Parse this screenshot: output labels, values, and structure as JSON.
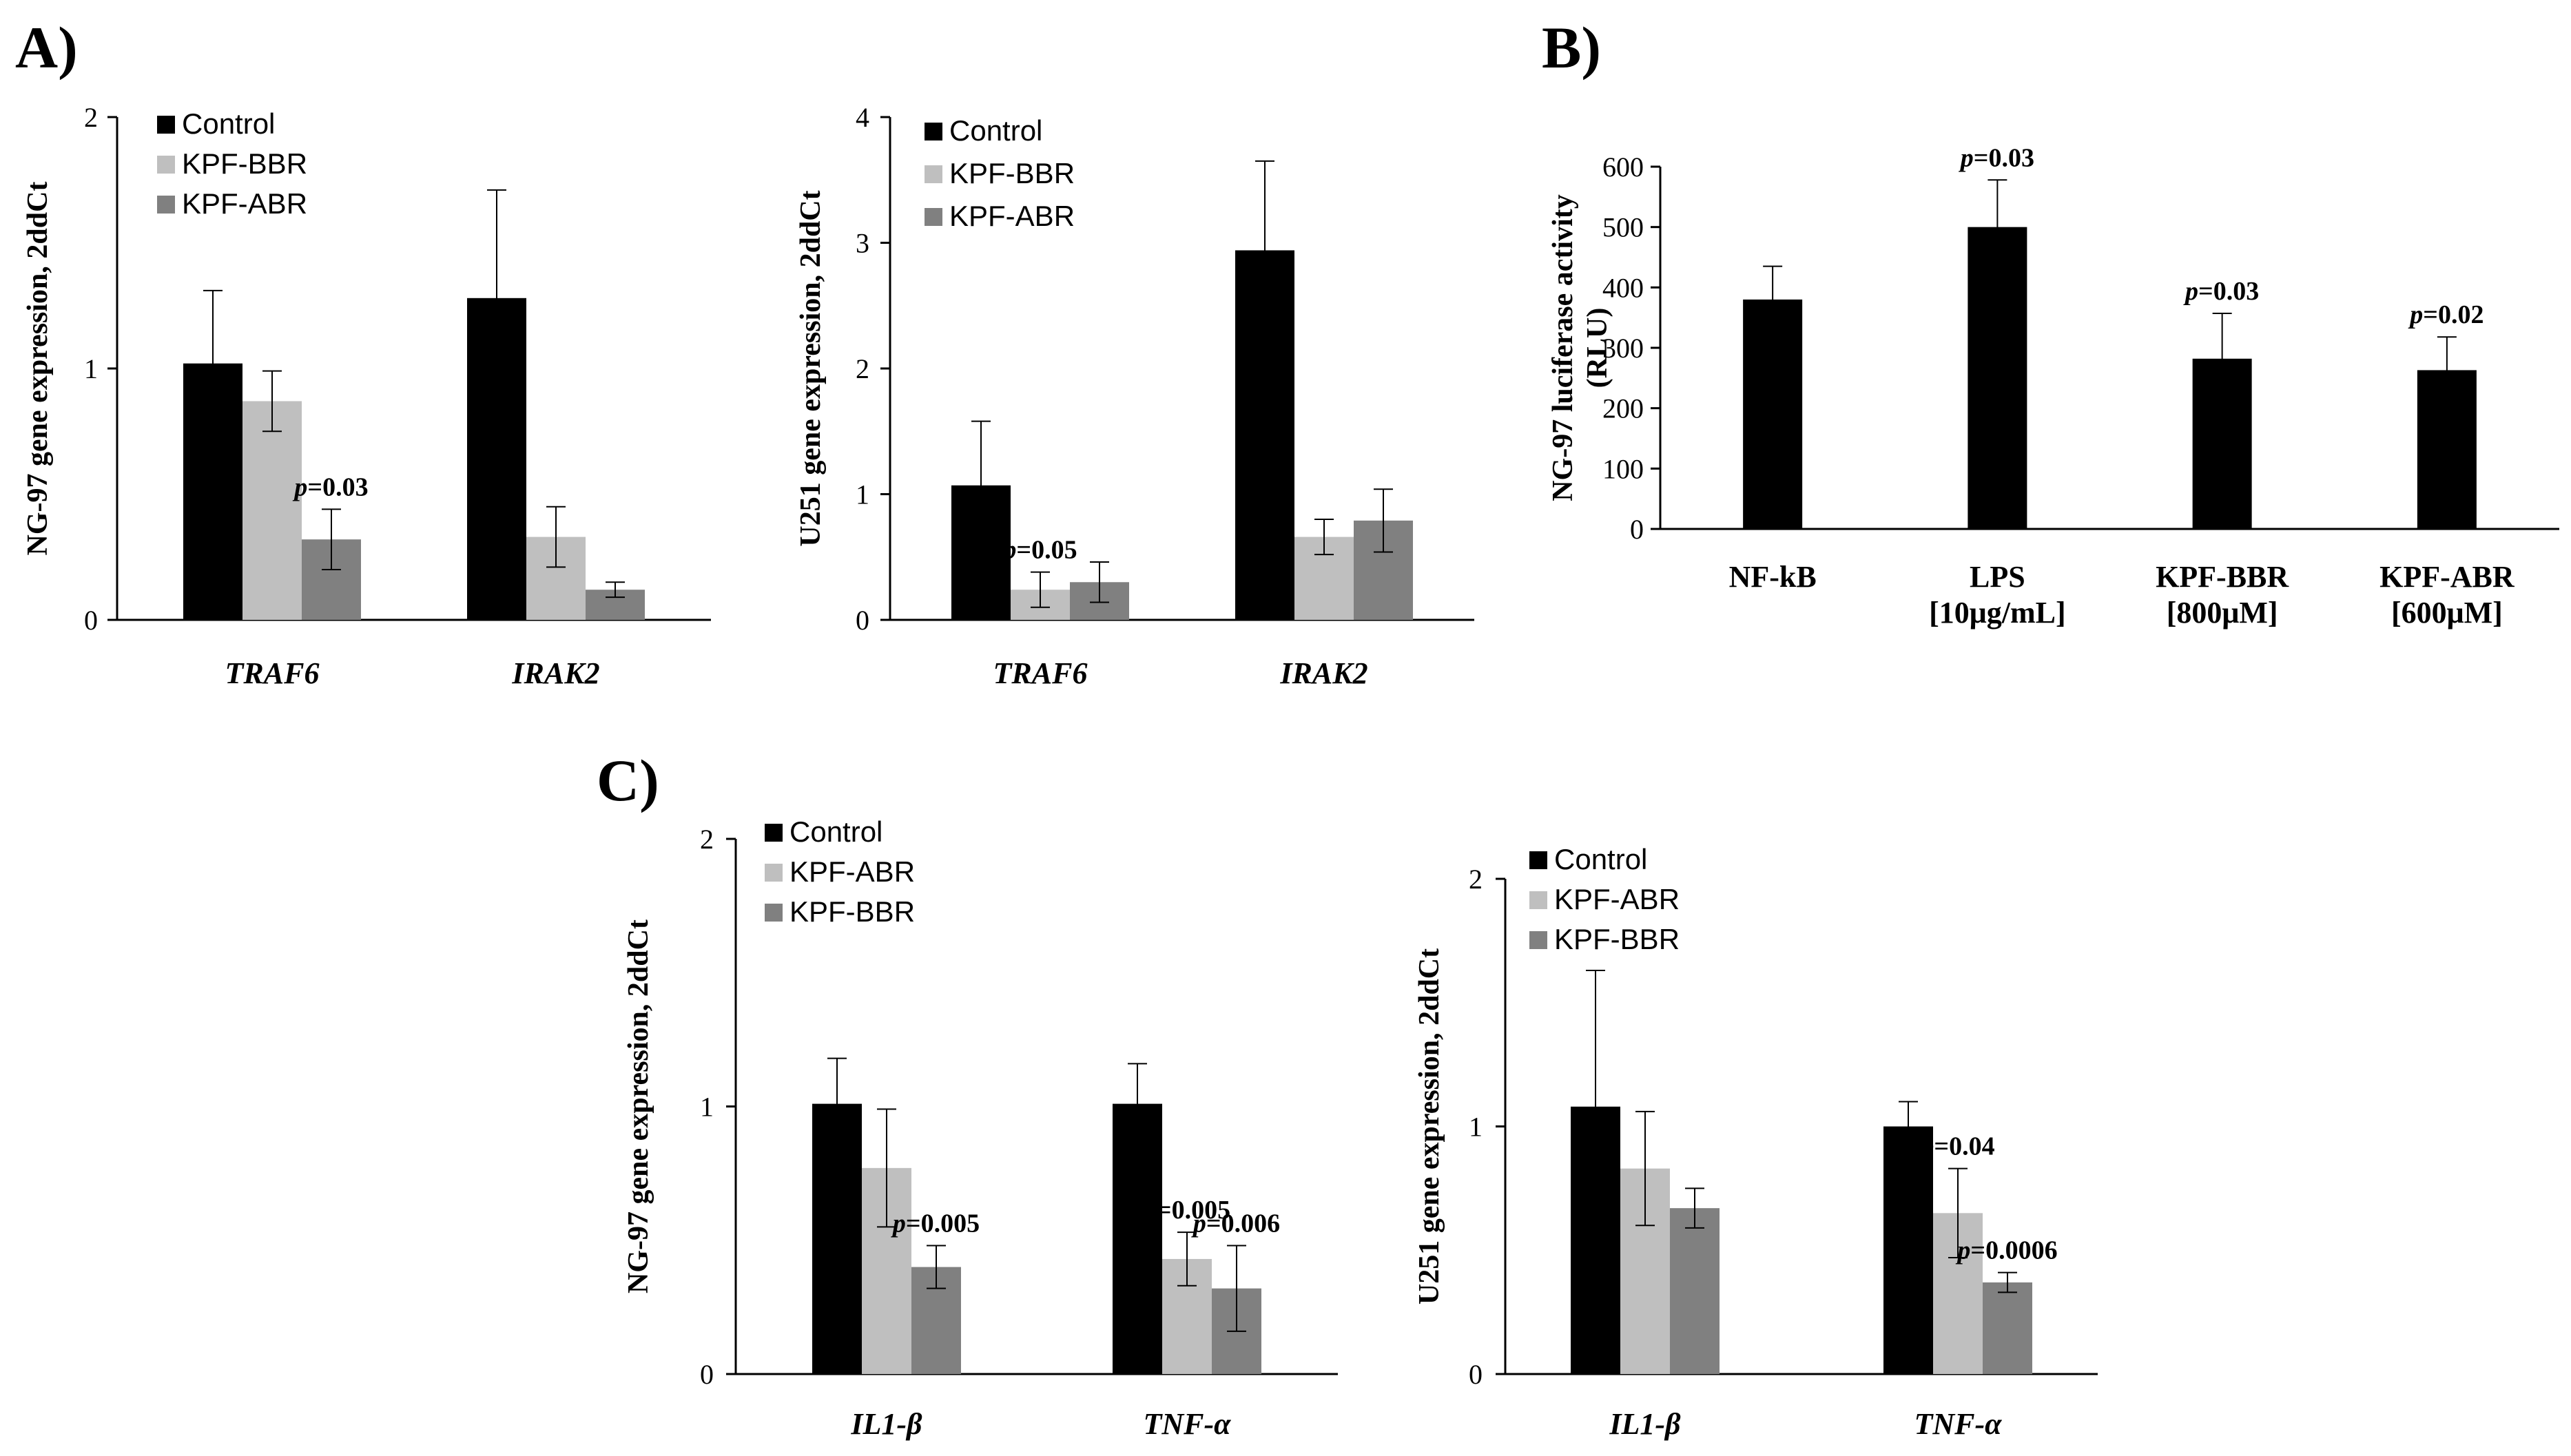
{
  "panel_labels": {
    "a": "A)",
    "b": "B)",
    "c": "C)"
  },
  "colors": {
    "control": "#000000",
    "light": "#bfbfbf",
    "dark": "#808080",
    "axis": "#000000"
  },
  "chart_data": [
    {
      "id": "a1",
      "panel": "A",
      "type": "bar",
      "ylabel": "NG-97 gene expression, 2ddCt",
      "ylim": [
        0,
        2
      ],
      "yticks": [
        0,
        1,
        2
      ],
      "categories": [
        "TRAF6",
        "IRAK2"
      ],
      "legend": [
        "Control",
        "KPF-BBR",
        "KPF-ABR"
      ],
      "series": [
        {
          "name": "Control",
          "values": [
            1.02,
            1.28
          ],
          "errors": [
            0.29,
            0.43
          ]
        },
        {
          "name": "KPF-BBR",
          "values": [
            0.87,
            0.33
          ],
          "errors": [
            0.12,
            0.12
          ]
        },
        {
          "name": "KPF-ABR",
          "values": [
            0.32,
            0.12
          ],
          "errors": [
            0.12,
            0.03
          ]
        }
      ],
      "annotations": [
        {
          "series": 2,
          "category": 0,
          "text": "=0.03"
        }
      ]
    },
    {
      "id": "a2",
      "panel": "A",
      "type": "bar",
      "ylabel": "U251 gene expression, 2ddCt",
      "ylim": [
        0,
        4
      ],
      "yticks": [
        0,
        1,
        2,
        3,
        4
      ],
      "categories": [
        "TRAF6",
        "IRAK2"
      ],
      "legend": [
        "Control",
        "KPF-BBR",
        "KPF-ABR"
      ],
      "series": [
        {
          "name": "Control",
          "values": [
            1.07,
            2.94
          ],
          "errors": [
            0.51,
            0.71
          ]
        },
        {
          "name": "KPF-BBR",
          "values": [
            0.24,
            0.66
          ],
          "errors": [
            0.14,
            0.14
          ]
        },
        {
          "name": "KPF-ABR",
          "values": [
            0.3,
            0.79
          ],
          "errors": [
            0.16,
            0.25
          ]
        }
      ],
      "annotations": [
        {
          "series": 1,
          "category": 0,
          "text": "=0.05"
        }
      ]
    },
    {
      "id": "b",
      "panel": "B",
      "type": "bar",
      "ylabel_lines": [
        "NG-97 luciferase activity",
        "(RLU)"
      ],
      "ylim": [
        0,
        600
      ],
      "yticks": [
        0,
        100,
        200,
        300,
        400,
        500,
        600
      ],
      "categories": [
        [
          "NF-kB"
        ],
        [
          "LPS",
          "[10μg/mL]"
        ],
        [
          "KPF-BBR",
          "[800μM]"
        ],
        [
          "KPF-ABR",
          "[600μM]"
        ]
      ],
      "series": [
        {
          "name": "RLU",
          "values": [
            380,
            500,
            282,
            263
          ],
          "errors": [
            55,
            78,
            75,
            55
          ]
        }
      ],
      "annotations": [
        {
          "series": 0,
          "category": 1,
          "text": "=0.03"
        },
        {
          "series": 0,
          "category": 2,
          "text": "=0.03"
        },
        {
          "series": 0,
          "category": 3,
          "text": "=0.02"
        }
      ]
    },
    {
      "id": "c1",
      "panel": "C",
      "type": "bar",
      "ylabel": "NG-97 gene expression, 2ddCt",
      "ylim": [
        0,
        2
      ],
      "yticks": [
        0,
        1,
        2
      ],
      "categories": [
        "IL1-β",
        "TNF-α"
      ],
      "legend": [
        "Control",
        "KPF-ABR",
        "KPF-BBR"
      ],
      "series": [
        {
          "name": "Control",
          "values": [
            1.01,
            1.01
          ],
          "errors": [
            0.17,
            0.15
          ]
        },
        {
          "name": "KPF-ABR",
          "values": [
            0.77,
            0.43
          ],
          "errors": [
            0.22,
            0.1
          ]
        },
        {
          "name": "KPF-BBR",
          "values": [
            0.4,
            0.32
          ],
          "errors": [
            0.08,
            0.16
          ]
        }
      ],
      "annotations": [
        {
          "series": 2,
          "category": 0,
          "text": "=0.005"
        },
        {
          "series": 1,
          "category": 1,
          "text": "=0.005"
        },
        {
          "series": 2,
          "category": 1,
          "text": "=0.006"
        }
      ]
    },
    {
      "id": "c2",
      "panel": "C",
      "type": "bar",
      "ylabel": "U251 gene expression, 2ddCt",
      "ylim": [
        0,
        2
      ],
      "yticks": [
        0,
        1,
        2
      ],
      "categories": [
        "IL1-β",
        "TNF-α"
      ],
      "legend": [
        "Control",
        "KPF-ABR",
        "KPF-BBR"
      ],
      "series": [
        {
          "name": "Control",
          "values": [
            1.08,
            1.0
          ],
          "errors": [
            0.55,
            0.1
          ]
        },
        {
          "name": "KPF-ABR",
          "values": [
            0.83,
            0.65
          ],
          "errors": [
            0.23,
            0.18
          ]
        },
        {
          "name": "KPF-BBR",
          "values": [
            0.67,
            0.37
          ],
          "errors": [
            0.08,
            0.04
          ]
        }
      ],
      "annotations": [
        {
          "series": 1,
          "category": 1,
          "text": "=0.04"
        },
        {
          "series": 2,
          "category": 1,
          "text": "=0.0006"
        }
      ]
    }
  ]
}
